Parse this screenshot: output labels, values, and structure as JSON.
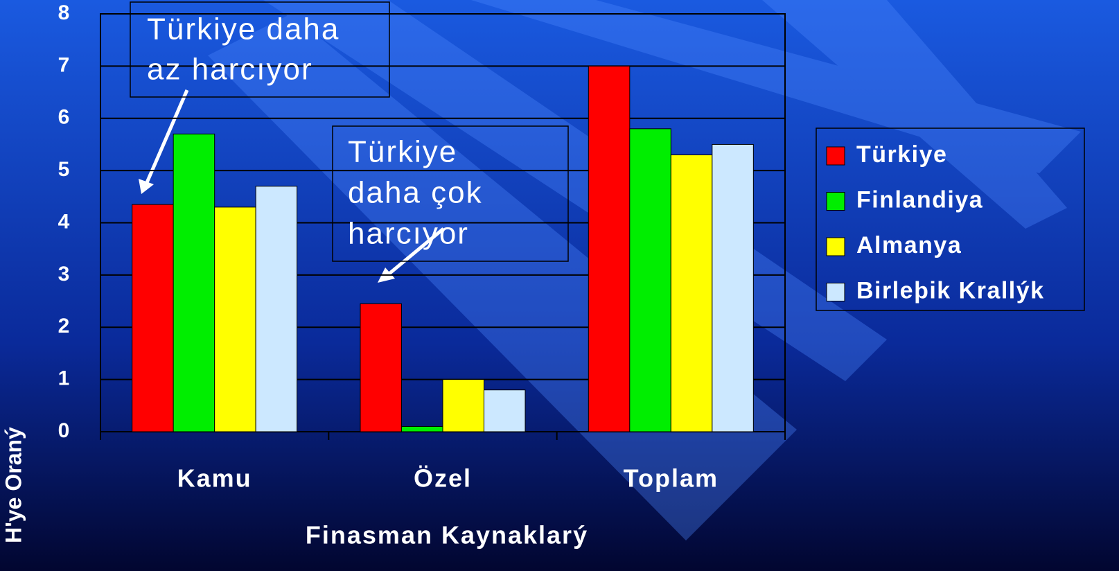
{
  "chart_data": {
    "type": "bar",
    "y_label": "H'ye Oraný",
    "x_label": "Finasman Kaynaklarý",
    "categories": [
      "Kamu",
      "Özel",
      "Toplam"
    ],
    "series": [
      {
        "name": "Türkiye",
        "color": "#ff0000",
        "values": [
          4.35,
          2.45,
          7.0
        ]
      },
      {
        "name": "Finlandiya",
        "color": "#00ee00",
        "values": [
          5.7,
          0.1,
          5.8
        ]
      },
      {
        "name": "Almanya",
        "color": "#ffff00",
        "values": [
          4.3,
          1.0,
          5.3
        ]
      },
      {
        "name": "Birleþik Krallýk",
        "color": "#cce8ff",
        "values": [
          4.7,
          0.8,
          5.5
        ]
      }
    ],
    "ylim": [
      0,
      8
    ],
    "yticks": [
      0,
      1,
      2,
      3,
      4,
      5,
      6,
      7,
      8
    ],
    "grid": true,
    "annotations": [
      {
        "lines": [
          "Türkiye daha",
          "az harcıyor"
        ]
      },
      {
        "lines": [
          "Türkiye",
          "daha çok",
          "harcıyor"
        ]
      }
    ]
  }
}
